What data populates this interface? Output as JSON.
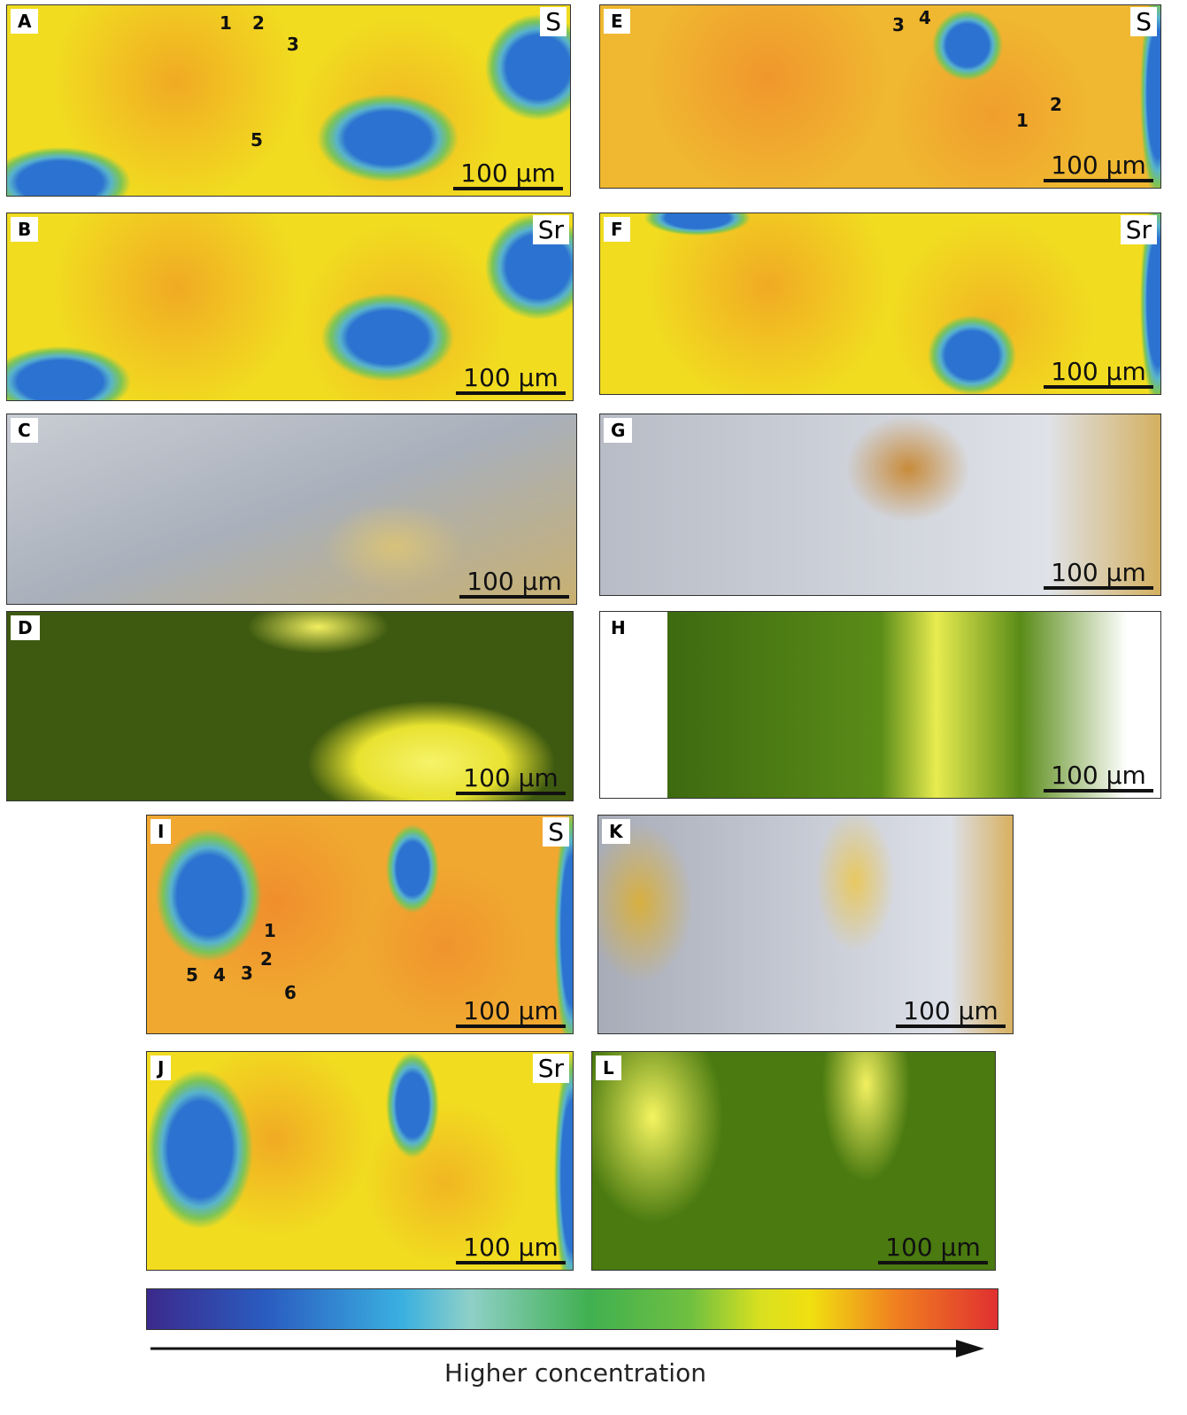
{
  "panels": [
    {
      "letter": "A",
      "element": "S",
      "scale_bar": "100 µm",
      "points": [
        "1",
        "2",
        "3",
        "5"
      ]
    },
    {
      "letter": "B",
      "element": "Sr",
      "scale_bar": "100 µm"
    },
    {
      "letter": "C",
      "scale_bar": "100 µm"
    },
    {
      "letter": "D",
      "scale_bar": "100 µm"
    },
    {
      "letter": "E",
      "element": "S",
      "scale_bar": "100 µm",
      "points": [
        "3",
        "4",
        "1",
        "2"
      ]
    },
    {
      "letter": "F",
      "element": "Sr",
      "scale_bar": "100 µm"
    },
    {
      "letter": "G",
      "scale_bar": "100 µm"
    },
    {
      "letter": "H",
      "scale_bar": "100 µm"
    },
    {
      "letter": "I",
      "element": "S",
      "scale_bar": "100 µm",
      "points": [
        "1",
        "2",
        "3",
        "4",
        "5",
        "6"
      ]
    },
    {
      "letter": "J",
      "element": "Sr",
      "scale_bar": "100 µm"
    },
    {
      "letter": "K",
      "scale_bar": "100 µm"
    },
    {
      "letter": "L",
      "scale_bar": "100 µm"
    }
  ],
  "colorbar": {
    "label": "Higher concentration"
  }
}
